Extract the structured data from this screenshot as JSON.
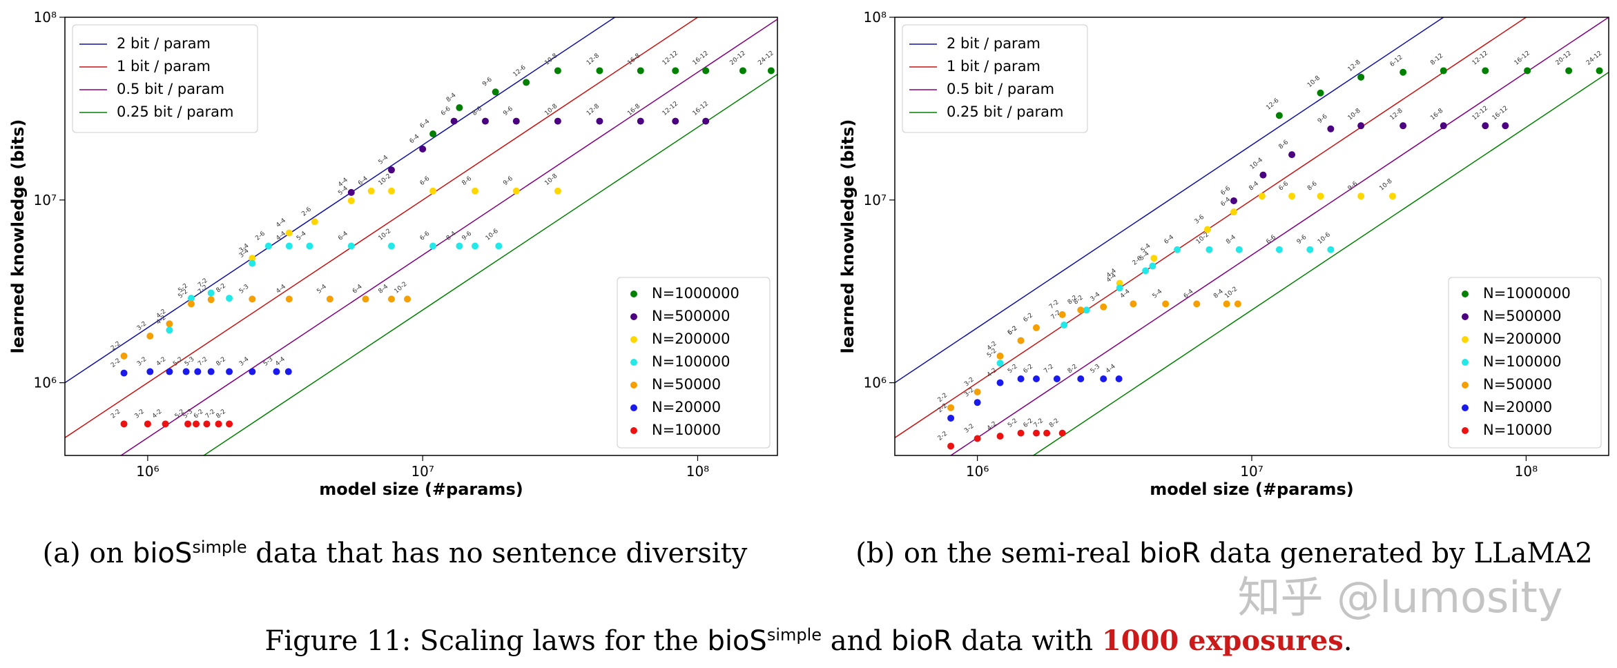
{
  "chart_data": [
    {
      "type": "scatter",
      "xlabel": "model size (#params)",
      "ylabel": "learned knowledge (bits)",
      "xlog": true,
      "ylog": true,
      "xlim": [
        500000,
        195000000
      ],
      "ylim": [
        400000,
        100000000
      ],
      "xticks": [
        {
          "value": 1000000,
          "label": "10⁶"
        },
        {
          "value": 10000000,
          "label": "10⁷"
        },
        {
          "value": 100000000,
          "label": "10⁸"
        }
      ],
      "yticks": [
        {
          "value": 1000000,
          "label": "10⁶"
        },
        {
          "value": 10000000,
          "label": "10⁷"
        },
        {
          "value": 100000000,
          "label": "10⁸"
        }
      ],
      "line_legend": "upper left",
      "legend": "lower right",
      "lines": [
        {
          "name": "2 bit / param",
          "color": "#1010a0",
          "slope": 2
        },
        {
          "name": "1 bit / param",
          "color": "#c81010",
          "slope": 1
        },
        {
          "name": "0.5 bit / param",
          "color": "#800080",
          "slope": 0.5
        },
        {
          "name": "0.25 bit / param",
          "color": "#008000",
          "slope": 0.25
        }
      ],
      "series": [
        {
          "name": "N=1000000",
          "color": "#008000",
          "x": [
            10900000,
            13600000,
            18400000,
            23800000,
            31000000,
            44000000,
            62000000,
            83000000,
            107000000,
            146000000,
            185000000
          ],
          "values": [
            23000000,
            32000000,
            39000000,
            44000000,
            51000000,
            51000000,
            51000000,
            51000000,
            51000000,
            51000000,
            51000000
          ],
          "labels": [
            "6-4",
            "8-4",
            "9-6",
            "12-6",
            "10-8",
            "12-8",
            "16-8",
            "12-12",
            "16-12",
            "20-12",
            "24-12"
          ]
        },
        {
          "name": "N=500000",
          "color": "#4b0082",
          "x": [
            5500000,
            7700000,
            10000000,
            13000000,
            16900000,
            21900000,
            31000000,
            44000000,
            62000000,
            83000000,
            107000000
          ],
          "values": [
            11000000,
            14600000,
            19000000,
            27000000,
            27000000,
            27000000,
            27000000,
            27000000,
            27000000,
            27000000,
            27000000
          ],
          "labels": [
            "4-4",
            "5-4",
            "6-4",
            "6-6",
            "8-6",
            "9-6",
            "10-8",
            "12-8",
            "16-8",
            "12-12",
            "16-12"
          ]
        },
        {
          "name": "N=200000",
          "color": "#ffd700",
          "x": [
            2400000,
            3270000,
            4050000,
            5500000,
            6500000,
            7700000,
            10900000,
            15500000,
            21900000,
            31000000
          ],
          "values": [
            4800000,
            6600000,
            7600000,
            9900000,
            11200000,
            11200000,
            11200000,
            11200000,
            11200000,
            11200000
          ],
          "labels": [
            "3-4",
            "4-4",
            "2-6",
            "5-4",
            "6-4",
            "10-2",
            "6-6",
            "8-6",
            "9-6",
            "10-8"
          ]
        },
        {
          "name": "N=100000",
          "color": "#22e8e8",
          "x": [
            1200000,
            1440000,
            1700000,
            1980000,
            2400000,
            2750000,
            3270000,
            3880000,
            5500000,
            7700000,
            10900000,
            13600000,
            15500000,
            18900000
          ],
          "values": [
            1940000,
            2900000,
            3100000,
            2900000,
            4500000,
            5600000,
            5600000,
            5600000,
            5600000,
            5600000,
            5600000,
            5600000,
            5600000,
            5600000
          ],
          "labels": [
            "4-2",
            "5-2",
            "7-2",
            "8-2",
            "3-4",
            "2-6",
            "4-4",
            "5-4",
            "6-4",
            "10-2",
            "6-6",
            "8-4",
            "9-6",
            "10-6"
          ]
        },
        {
          "name": "N=50000",
          "color": "#f5a000",
          "x": [
            820000,
            1020000,
            1200000,
            1440000,
            1700000,
            2400000,
            3270000,
            4600000,
            6200000,
            7700000,
            8800000
          ],
          "values": [
            1400000,
            1800000,
            2100000,
            2700000,
            2850000,
            2870000,
            2870000,
            2870000,
            2870000,
            2870000,
            2870000
          ],
          "labels": [
            "2-2",
            "3-2",
            "4-2",
            "5-2",
            "7-2",
            "5-3",
            "4-4",
            "5-4",
            "6-4",
            "8-4",
            "10-2"
          ]
        },
        {
          "name": "N=20000",
          "color": "#1a1aee",
          "x": [
            820000,
            1020000,
            1200000,
            1380000,
            1520000,
            1700000,
            1980000,
            2400000,
            2940000,
            3250000
          ],
          "values": [
            1130000,
            1150000,
            1150000,
            1150000,
            1150000,
            1150000,
            1150000,
            1150000,
            1150000,
            1150000
          ],
          "labels": [
            "2-2",
            "3-2",
            "4-2",
            "5-2",
            "5-3",
            "7-2",
            "8-2",
            "3-4",
            "5-3",
            "4-4"
          ]
        },
        {
          "name": "N=10000",
          "color": "#ee1111",
          "x": [
            820000,
            1000000,
            1160000,
            1400000,
            1500000,
            1640000,
            1810000,
            1980000
          ],
          "values": [
            595000,
            595000,
            595000,
            595000,
            595000,
            595000,
            595000,
            595000
          ],
          "labels": [
            "2-2",
            "3-2",
            "4-2",
            "5-2",
            "5-3",
            "6-2",
            "7-2",
            "8-2"
          ]
        }
      ]
    },
    {
      "type": "scatter",
      "xlabel": "model size (#params)",
      "ylabel": "learned knowledge (bits)",
      "xlog": true,
      "ylog": true,
      "xlim": [
        500000,
        200000000
      ],
      "ylim": [
        400000,
        100000000
      ],
      "xticks": [
        {
          "value": 1000000,
          "label": "10⁶"
        },
        {
          "value": 10000000,
          "label": "10⁷"
        },
        {
          "value": 100000000,
          "label": "10⁸"
        }
      ],
      "yticks": [
        {
          "value": 1000000,
          "label": "10⁶"
        },
        {
          "value": 10000000,
          "label": "10⁷"
        },
        {
          "value": 100000000,
          "label": "10⁸"
        }
      ],
      "line_legend": "upper left",
      "legend": "lower right",
      "lines": [
        {
          "name": "2 bit / param",
          "color": "#1010a0",
          "slope": 2
        },
        {
          "name": "1 bit / param",
          "color": "#c81010",
          "slope": 1
        },
        {
          "name": "0.5 bit / param",
          "color": "#800080",
          "slope": 0.5
        },
        {
          "name": "0.25 bit / param",
          "color": "#008000",
          "slope": 0.25
        }
      ],
      "series": [
        {
          "name": "N=1000000",
          "color": "#008000",
          "x": [
            12600000,
            17800000,
            25000000,
            35600000,
            50000000,
            71000000,
            101000000,
            143000000,
            185000000
          ],
          "values": [
            29000000,
            38500000,
            47000000,
            50000000,
            51000000,
            51000000,
            51000000,
            51000000,
            51000000
          ],
          "labels": [
            "12-6",
            "10-8",
            "12-8",
            "6-12",
            "8-12",
            "12-12",
            "16-12",
            "20-12",
            "24-12"
          ]
        },
        {
          "name": "N=500000",
          "color": "#4b0082",
          "x": [
            8600000,
            11000000,
            14000000,
            19400000,
            25000000,
            35600000,
            50000000,
            71000000,
            84000000
          ],
          "values": [
            9900000,
            13700000,
            17700000,
            24500000,
            25500000,
            25500000,
            25500000,
            25500000,
            25500000
          ],
          "labels": [
            "6-6",
            "10-4",
            "8-6",
            "9-6",
            "10-8",
            "12-8",
            "16-8",
            "12-12",
            "16-12"
          ]
        },
        {
          "name": "N=200000",
          "color": "#ffd700",
          "x": [
            3300000,
            4400000,
            6900000,
            8600000,
            10900000,
            14000000,
            17800000,
            25000000,
            32600000
          ],
          "values": [
            3500000,
            4800000,
            6900000,
            8600000,
            10500000,
            10500000,
            10500000,
            10500000,
            10500000
          ],
          "labels": [
            "4-4",
            "5-4",
            "3-6",
            "6-4",
            "8-4",
            "6-6",
            "8-6",
            "9-6",
            "10-8"
          ]
        },
        {
          "name": "N=100000",
          "color": "#22e8e8",
          "x": [
            1210000,
            1440000,
            2070000,
            2500000,
            3300000,
            4100000,
            4350000,
            5350000,
            7000000,
            9000000,
            12600000,
            16300000,
            19400000
          ],
          "values": [
            1280000,
            1700000,
            2070000,
            2500000,
            3300000,
            4100000,
            4350000,
            5350000,
            5350000,
            5350000,
            5350000,
            5350000,
            5350000
          ],
          "labels": [
            "5-2",
            "6-2",
            "7-2",
            "8-2",
            "4-4",
            "2-6",
            "5-4",
            "6-4",
            "10-2",
            "8-4",
            "6-6",
            "9-6",
            "10-6"
          ]
        },
        {
          "name": "N=50000",
          "color": "#f5a000",
          "x": [
            800000,
            1000000,
            1210000,
            1440000,
            1640000,
            2040000,
            2380000,
            2880000,
            3700000,
            4850000,
            6300000,
            8100000,
            8900000
          ],
          "values": [
            730000,
            890000,
            1400000,
            1700000,
            2000000,
            2360000,
            2500000,
            2600000,
            2700000,
            2700000,
            2700000,
            2700000,
            2700000
          ],
          "labels": [
            "2-2",
            "3-2",
            "4-2",
            "5-2",
            "6-2",
            "7-2",
            "8-2",
            "3-4",
            "4-4",
            "5-4",
            "6-4",
            "8-4",
            "10-2"
          ]
        },
        {
          "name": "N=20000",
          "color": "#1a1aee",
          "x": [
            800000,
            1000000,
            1210000,
            1440000,
            1640000,
            1950000,
            2380000,
            2880000,
            3280000
          ],
          "values": [
            640000,
            780000,
            1000000,
            1050000,
            1050000,
            1050000,
            1050000,
            1050000,
            1050000
          ],
          "labels": [
            "2-2",
            "3-2",
            "4-2",
            "5-2",
            "6-2",
            "7-2",
            "8-2",
            "5-3",
            "4-4"
          ]
        },
        {
          "name": "N=10000",
          "color": "#ee1111",
          "x": [
            800000,
            1000000,
            1210000,
            1440000,
            1640000,
            1790000,
            2040000
          ],
          "values": [
            450000,
            495000,
            510000,
            530000,
            530000,
            530000,
            530000
          ],
          "labels": [
            "2-2",
            "3-2",
            "4-2",
            "5-2",
            "6-2",
            "7-2",
            "8-2"
          ]
        }
      ]
    }
  ],
  "captions": [
    [
      {
        "text": "(a) on "
      },
      {
        "text": "bioS",
        "style": "sans"
      },
      {
        "text": "simple",
        "style": "sup"
      },
      {
        "text": " data that has no sentence diversity"
      }
    ],
    [
      {
        "text": "(b) on the semi-real "
      },
      {
        "text": "bioR",
        "style": "sans"
      },
      {
        "text": " data generated by LLaMA2"
      }
    ]
  ],
  "figure_caption": [
    {
      "text": "Figure 11: Scaling laws for the "
    },
    {
      "text": "bioS",
      "style": "sans"
    },
    {
      "text": "simple",
      "style": "sup"
    },
    {
      "text": " and "
    },
    {
      "text": "bioR",
      "style": "sans"
    },
    {
      "text": " data with "
    },
    {
      "text": "1000 exposures",
      "style": "red-bold"
    },
    {
      "text": "."
    }
  ],
  "watermark": "知乎 @lumosity"
}
